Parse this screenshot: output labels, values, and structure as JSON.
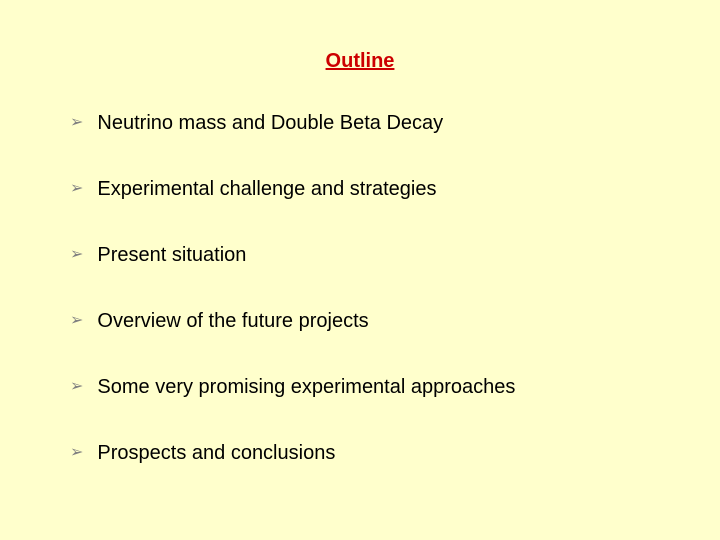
{
  "title": "Outline",
  "title_color": "#cc0000",
  "background_color": "#ffffcc",
  "bullet_color": "#808080",
  "text_color": "#000000",
  "title_fontsize": 20,
  "item_fontsize": 20,
  "bullet_glyph": "➢",
  "items": [
    {
      "label": "Neutrino mass and Double Beta Decay"
    },
    {
      "label": "Experimental challenge and strategies"
    },
    {
      "label": "Present situation"
    },
    {
      "label": "Overview of the future projects"
    },
    {
      "label": "Some very promising experimental approaches"
    },
    {
      "label": "Prospects and conclusions"
    }
  ]
}
